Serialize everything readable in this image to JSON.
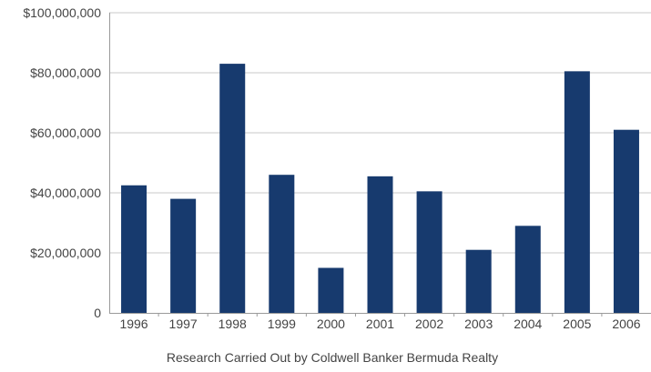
{
  "chart_data": {
    "type": "bar",
    "title": "",
    "xlabel": "",
    "ylabel": "",
    "categories": [
      "1996",
      "1997",
      "1998",
      "1999",
      "2000",
      "2001",
      "2002",
      "2003",
      "2004",
      "2005",
      "2006"
    ],
    "series": [
      {
        "values": [
          42500000,
          38000000,
          83000000,
          46000000,
          15000000,
          45500000,
          40500000,
          21000000,
          29000000,
          80500000,
          61000000
        ]
      }
    ],
    "ylim": [
      0,
      100000000
    ],
    "yticks": [
      0,
      20000000,
      40000000,
      60000000,
      80000000,
      100000000
    ],
    "ytick_labels": [
      "0",
      "$20,000,000",
      "$40,000,000",
      "$60,000,000",
      "$80,000,000",
      "$100,000,000"
    ],
    "grid": true,
    "legend": "none",
    "bar_color": "#173a6e",
    "grid_color": "#c8c8c8",
    "axis_color": "#9a9a9a",
    "tick_label_color": "#444444"
  },
  "footer": {
    "caption": "Research Carried Out by Coldwell Banker Bermuda Realty"
  }
}
